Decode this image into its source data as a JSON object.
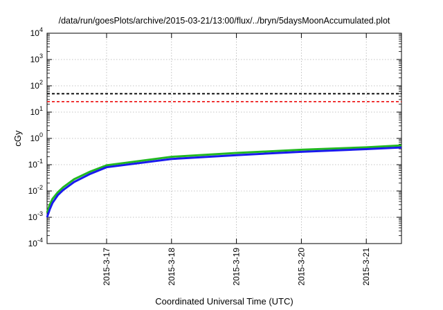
{
  "chart_data": {
    "type": "line",
    "title": "/data/run/goesPlots/archive/2015-03-21/13:00/flux/../bryn/5daysMoonAccumulated.plot",
    "xlabel": "Coordinated Universal Time (UTC)",
    "ylabel": "cGy",
    "x_type": "date",
    "xlim": [
      "2015-03-16T02:00",
      "2015-03-21T13:00"
    ],
    "x_ticks": [
      "2015-3-17",
      "2015-3-18",
      "2015-3-19",
      "2015-3-20",
      "2015-3-21"
    ],
    "y_scale": "log",
    "ylim": [
      0.0001,
      10000
    ],
    "y_ticks": [
      {
        "base": "10",
        "exp": "-4"
      },
      {
        "base": "10",
        "exp": "-3"
      },
      {
        "base": "10",
        "exp": "-2"
      },
      {
        "base": "10",
        "exp": "-1"
      },
      {
        "base": "10",
        "exp": "0"
      },
      {
        "base": "10",
        "exp": "1"
      },
      {
        "base": "10",
        "exp": "2"
      },
      {
        "base": "10",
        "exp": "3"
      },
      {
        "base": "10",
        "exp": "4"
      }
    ],
    "grid": true,
    "series": [
      {
        "color": "#22b822",
        "style": "solid",
        "x": [
          "2015-03-16T02:00",
          "2015-03-16T03:00",
          "2015-03-16T04:00",
          "2015-03-16T06:00",
          "2015-03-16T08:00",
          "2015-03-16T12:00",
          "2015-03-16T18:00",
          "2015-03-17T00:00",
          "2015-03-18T00:00",
          "2015-03-19T00:00",
          "2015-03-20T00:00",
          "2015-03-21T00:00",
          "2015-03-21T13:00"
        ],
        "y": [
          0.0015,
          0.003,
          0.005,
          0.009,
          0.014,
          0.028,
          0.055,
          0.095,
          0.2,
          0.28,
          0.37,
          0.46,
          0.54
        ]
      },
      {
        "color": "#1a1aee",
        "style": "solid",
        "x": [
          "2015-03-16T02:00",
          "2015-03-16T03:00",
          "2015-03-16T04:00",
          "2015-03-16T06:00",
          "2015-03-16T08:00",
          "2015-03-16T12:00",
          "2015-03-16T18:00",
          "2015-03-17T00:00",
          "2015-03-18T00:00",
          "2015-03-19T00:00",
          "2015-03-20T00:00",
          "2015-03-21T00:00",
          "2015-03-21T13:00"
        ],
        "y": [
          0.001,
          0.002,
          0.0035,
          0.007,
          0.011,
          0.022,
          0.045,
          0.08,
          0.165,
          0.23,
          0.31,
          0.39,
          0.45
        ]
      },
      {
        "color": "#000000",
        "style": "dashed",
        "x": [
          "2015-03-16T02:00",
          "2015-03-21T13:00"
        ],
        "y": [
          50,
          50
        ]
      },
      {
        "color": "#ee1a1a",
        "style": "dashed",
        "x": [
          "2015-03-16T02:00",
          "2015-03-21T13:00"
        ],
        "y": [
          25,
          25
        ]
      }
    ]
  }
}
